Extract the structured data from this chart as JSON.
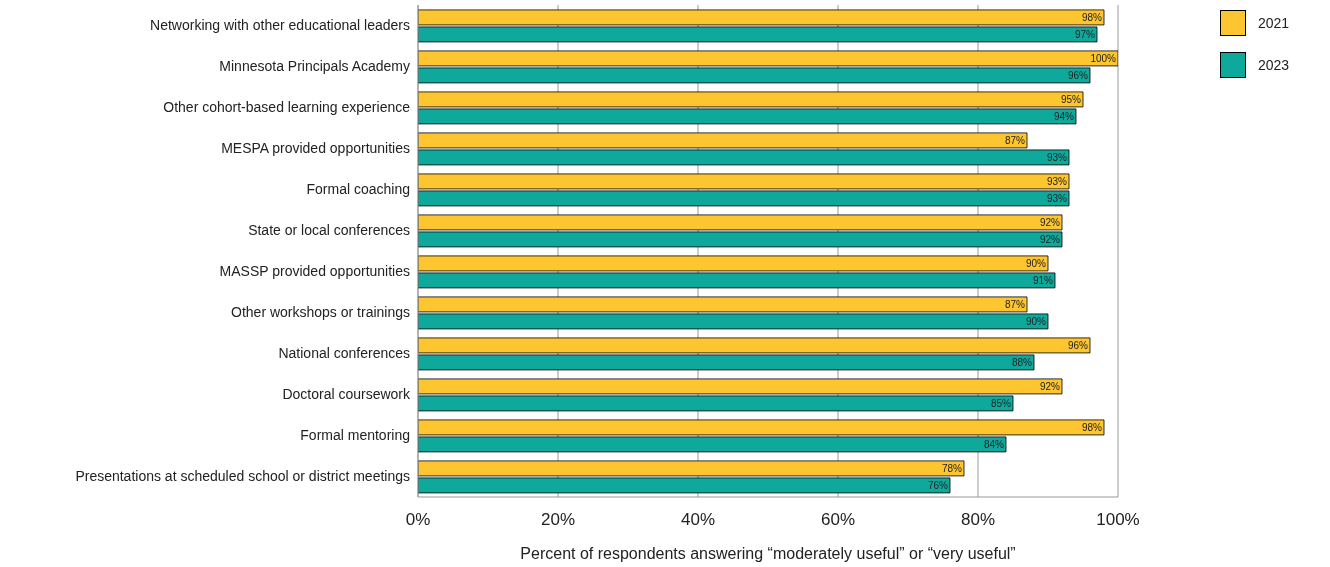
{
  "chart_data": {
    "type": "bar",
    "orientation": "horizontal",
    "xlabel": "Percent of respondents answering “moderately useful” or “very useful”",
    "categories": [
      "Networking with other educational leaders",
      "Minnesota Principals Academy",
      "Other cohort-based learning experience",
      "MESPA provided opportunities",
      "Formal coaching",
      "State or local conferences",
      "MASSP provided opportunities",
      "Other workshops or trainings",
      "National conferences",
      "Doctoral coursework",
      "Formal mentoring",
      "Presentations at scheduled school or district meetings"
    ],
    "series": [
      {
        "name": "2021",
        "color": "#fdc530",
        "values": [
          98,
          100,
          95,
          87,
          93,
          92,
          90,
          87,
          96,
          92,
          98,
          78
        ],
        "value_labels": [
          "98%",
          "100%",
          "95%",
          "87%",
          "93%",
          "92%",
          "90%",
          "87%",
          "96%",
          "92%",
          "98%",
          "78%"
        ]
      },
      {
        "name": "2023",
        "color": "#0fa99c",
        "values": [
          97,
          96,
          94,
          93,
          93,
          92,
          91,
          90,
          88,
          85,
          84,
          76
        ],
        "value_labels": [
          "97%",
          "96%",
          "94%",
          "93%",
          "93%",
          "92%",
          "91%",
          "90%",
          "88%",
          "85%",
          "84%",
          "76%"
        ]
      }
    ],
    "xlim": [
      0,
      100
    ],
    "xticks": [
      {
        "value": 0,
        "label": "0%"
      },
      {
        "value": 20,
        "label": "20%"
      },
      {
        "value": 40,
        "label": "40%"
      },
      {
        "value": 60,
        "label": "60%"
      },
      {
        "value": 80,
        "label": "80%"
      },
      {
        "value": 100,
        "label": "100%"
      }
    ],
    "grid": "x",
    "legend": "top right"
  }
}
